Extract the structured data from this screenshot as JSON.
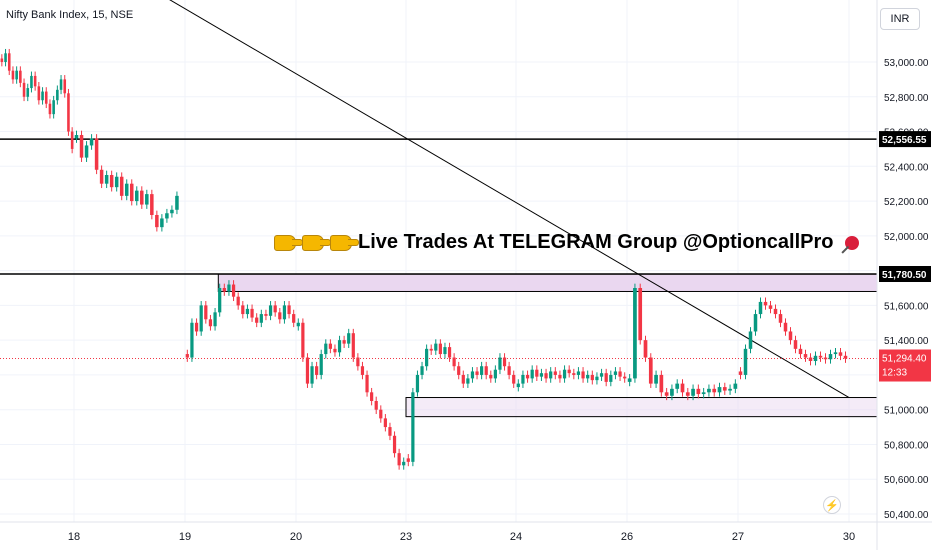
{
  "header": {
    "symbol": "Nifty Bank Index, 15, NSE"
  },
  "currency_button": "INR",
  "banner": {
    "text": "Live Trades At TELEGRAM Group @OptioncallPro"
  },
  "icons": {
    "pointing": "backhand-index-pointing-right-icon",
    "pin": "pushpin-icon",
    "quick": "lightning-icon"
  },
  "colors": {
    "up": "#089981",
    "down": "#f23645",
    "zone_fill": "#ead7f0",
    "line": "#000000",
    "grid": "#f0f3fa",
    "last_price_bg": "#f23645"
  },
  "chart_data": {
    "type": "candlestick",
    "ylim": [
      50400,
      53300
    ],
    "y_ticks": [
      53000,
      52800,
      52600,
      52400,
      52200,
      52000,
      51800,
      51600,
      51400,
      51200,
      51000,
      50800,
      50600,
      50400
    ],
    "y_tick_labels": [
      "53,000.00",
      "52,800.00",
      "52,600.00",
      "52,400.00",
      "52,200.00",
      "52,000.00",
      "51,800.00",
      "51,600.00",
      "51,400.00",
      "51,200.00",
      "51,000.00",
      "50,800.00",
      "50,600.00",
      "50,400.00"
    ],
    "x_labels": [
      {
        "label": "18",
        "day": 18
      },
      {
        "label": "19",
        "day": 19
      },
      {
        "label": "20",
        "day": 20
      },
      {
        "label": "23",
        "day": 23
      },
      {
        "label": "24",
        "day": 24
      },
      {
        "label": "26",
        "day": 26
      },
      {
        "label": "27",
        "day": 27
      },
      {
        "label": "30",
        "day": 30
      }
    ],
    "segments": [
      {
        "day": 17,
        "values": [
          53000,
          53050,
          52950,
          52900,
          52950,
          52880,
          52800,
          52850,
          52920,
          52860,
          52780,
          52830,
          52760,
          52700,
          52780,
          52840,
          52900,
          52820,
          52600,
          52500
        ]
      },
      {
        "day": 18,
        "values": [
          52580,
          52450,
          52520,
          52560,
          52380,
          52300,
          52350,
          52280,
          52340,
          52230,
          52300,
          52200,
          52260,
          52180,
          52240,
          52120,
          52050,
          52100,
          52130,
          52150,
          52230
        ]
      },
      {
        "day": 19,
        "values": [
          51300,
          51500,
          51450,
          51600,
          51520,
          51480,
          51560,
          51700,
          51680,
          51720,
          51650,
          51600,
          51550,
          51580,
          51530,
          51500,
          51550,
          51540,
          51600,
          51560,
          51520,
          51600,
          51550,
          51500
        ]
      },
      {
        "day": 20,
        "values": [
          51500,
          51300,
          51150,
          51250,
          51200,
          51320,
          51380,
          51350,
          51330,
          51400,
          51380,
          51440,
          51300,
          51250,
          51200,
          51100,
          51050,
          51000,
          50950,
          50900,
          50850,
          50750,
          50680,
          50700
        ]
      },
      {
        "day": 23,
        "values": [
          50700,
          51100,
          51200,
          51250,
          51350,
          51340,
          51380,
          51320,
          51360,
          51300,
          51250,
          51200,
          51150,
          51180,
          51220,
          51200,
          51250,
          51200,
          51180,
          51230,
          51300,
          51250,
          51200,
          51150
        ]
      },
      {
        "day": 24,
        "values": [
          51150,
          51200,
          51180,
          51230,
          51190,
          51210,
          51180,
          51220,
          51200,
          51180,
          51230,
          51210,
          51200,
          51220,
          51180,
          51200,
          51170,
          51190,
          51210,
          51160,
          51200,
          51220,
          51190,
          51180
        ]
      },
      {
        "day": 26,
        "values": [
          51180,
          51700,
          51400,
          51300,
          51150,
          51200,
          51100,
          51080,
          51120,
          51150,
          51100,
          51080,
          51120,
          51090,
          51100,
          51120,
          51100,
          51130,
          51110,
          51120,
          51150
        ]
      },
      {
        "day": 27,
        "values": [
          51200,
          51350,
          51450,
          51550,
          51620,
          51600,
          51580,
          51550,
          51500,
          51450,
          51400,
          51350,
          51320,
          51300,
          51280,
          51310,
          51300,
          51290,
          51320,
          51330,
          51310,
          51294.4
        ]
      }
    ],
    "day_bounds": {
      "17": [
        16.5,
        18.0
      ],
      "18": [
        18.0,
        18.95
      ],
      "19": [
        19.0,
        20.0
      ],
      "20": [
        20.0,
        23.0
      ],
      "23": [
        23.0,
        24.0
      ],
      "24": [
        24.0,
        26.0
      ],
      "26": [
        26.0,
        27.0
      ],
      "27": [
        27.0,
        28.0
      ]
    },
    "horizontal_lines": [
      {
        "price": 52556.55,
        "label": "52,556.55"
      },
      {
        "price": 51780.5,
        "label": "51,780.50"
      }
    ],
    "zones": [
      {
        "x_from_day": 19.3,
        "price_top": 51780,
        "price_bottom": 51680
      },
      {
        "x_from_day": 23.0,
        "price_top": 51070,
        "price_bottom": 50960
      }
    ],
    "trendline": {
      "from": {
        "day": 17.2,
        "price": 53880
      },
      "to": {
        "day": 30.1,
        "price": 51070
      }
    },
    "last_price": {
      "value": 51294.4,
      "label": "51,294.40",
      "countdown": "12:33"
    }
  }
}
